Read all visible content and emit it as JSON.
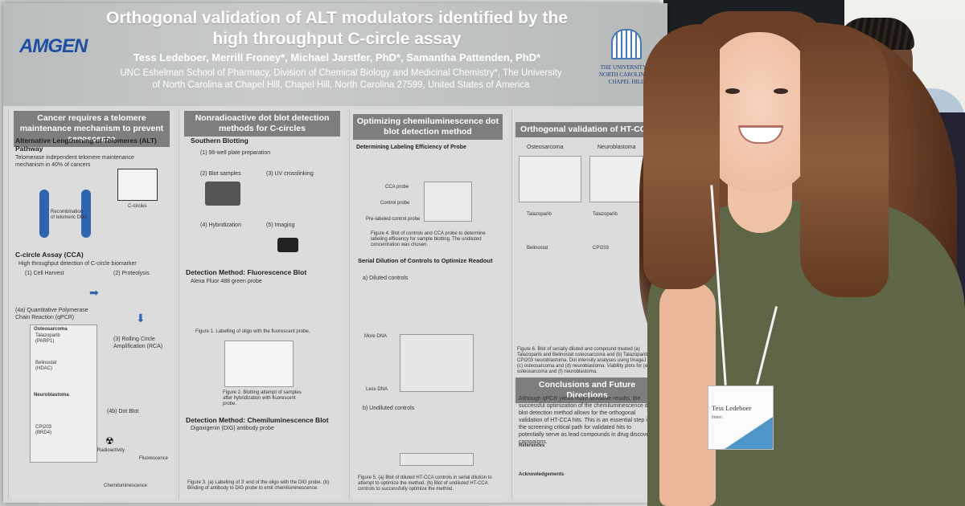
{
  "poster": {
    "logo_left": "AMGEN",
    "title": "Orthogonal validation of ALT modulators identified by the high throughput C-circle assay",
    "authors": "Tess Ledeboer, Merrill Froney*, Michael Jarstfer, PhD*, Samantha Pattenden, PhD*",
    "affiliation": "UNC Eshelman School of Pharmacy, Division of Chemical Biology and Medicinal Chemistry*, The University of North Carolina at Chapel Hill, Chapel Hill, North Carolina 27599, United States of America",
    "logo_right": "THE UNIVERSITY of NORTH CAROLINA at CHAPEL HILL",
    "sections": {
      "col1_head": "Cancer requires a telomere maintenance mechanism to prevent senescence",
      "alt_title": "Alternative Lengthening of Telomeres (ALT) Pathway",
      "alt_text": "Telomerase independent telomere maintenance mechanism in 40% of cancers",
      "recomb": "Recombination of telomeric DNA",
      "ccircles": "C-circles",
      "cca_title": "C-circle Assay (CCA)",
      "cca_text": "High throughput detection of C-circle biomarker",
      "step1": "(1) Cell Harvest",
      "step2": "(2) Proteolysis",
      "step3": "(3) Rolling Circle Amplification (RCA)",
      "step4a": "(4a) Quantitative Polymerase Chain Reaction (qPCR)",
      "step4b": "(4b) Dot Blot",
      "osteo": "Osteosarcoma",
      "talazoparib": "Talazoparib (PARP1)",
      "belinostat": "Belinostat (HDAC)",
      "neuro": "Neuroblastoma",
      "cpi": "CPI203 (BRD4)",
      "radio": "Radioactivity",
      "fluor": "Fluorescence",
      "chemi": "Chemiluminescence",
      "col2_head": "Nonradioactive dot blot detection methods for C-circles",
      "southern": "Southern Blotting",
      "s1": "(1) 96-well plate preparation",
      "s2": "(2) Blot samples",
      "s3": "(3) UV crosslinking",
      "s4": "(4) Hybridization",
      "s5": "(5) Imaging",
      "fluor_method": "Detection Method: Fluorescence Blot",
      "fluor_probe": "Alexa Fluor 488 green probe",
      "fig1": "Figure 1. Labelling of oligo with the fluorescent probe.",
      "fig2": "Figure 2. Blotting attempt of samples after hybridization with fluorescent probe.",
      "chemi_method": "Detection Method: Chemiluminescence Blot",
      "chemi_probe": "Digoxigenin (DIG) antibody probe",
      "fig3": "Figure 3. (a) Labelling of 3' end of the oligo with the DIG probe. (b) Binding of antibody to DIG probe to emit chemiluminescence.",
      "col3_head": "Optimizing chemiluminescence dot blot detection method",
      "det_label": "Determining Labeling Efficiency of Probe",
      "cca_probe": "CCA probe",
      "control_probe": "Control probe",
      "prelabeled": "Pre-labeled control probe",
      "fig4": "Figure 4. Blot of controls and CCA probe to determine labeling efficiency for sample blotting. The undiluted concentration was chosen.",
      "serial": "Serial Dilution of Controls to Optimize Readout",
      "diluted": "a) Diluted controls",
      "more_dna": "More DNA",
      "less_dna": "Less DNA",
      "undiluted": "b) Undiluted controls",
      "fig5": "Figure 5. (a) Blot of diluted HT-CCA controls in serial dilution to attempt to optimize the method. (b) Blot of undiluted HT-CCA controls to successfully optimize the method.",
      "col4_head": "Orthogonal validation of HT-CCA",
      "osteo_b": "Osteosarcoma",
      "neuro_b": "Neuroblastoma",
      "tala_b": "Talazoparib",
      "beli_b": "Belinostat",
      "cpi_b": "CPI203",
      "fig6": "Figure 6. Blot of serially diluted and compound treated (a) Talazoparib and Belinostat osteosarcoma and (b) Talazoparib and CPI203 neuroblastoma. Dot intensity analyses using ImageJ for (c) osteosarcoma and (d) neuroblastoma. Viability plots for (e) osteosarcoma and (f) neuroblastoma.",
      "concl_head": "Conclusions and Future Directions",
      "concl_text": "Although qPCR yields more sensitive results, the successful optimization of the chemiluminescence dot blot detection method allows for the orthogonal validation of HT-CCA hits. This is an essential step in the screening critical path for validated hits to potentially serve as lead compounds in drug discovery campaigns.",
      "refs": "References",
      "ack": "Acknowledgements"
    }
  },
  "badge": {
    "name": "Tess Ledeboer",
    "role": "Intern"
  }
}
